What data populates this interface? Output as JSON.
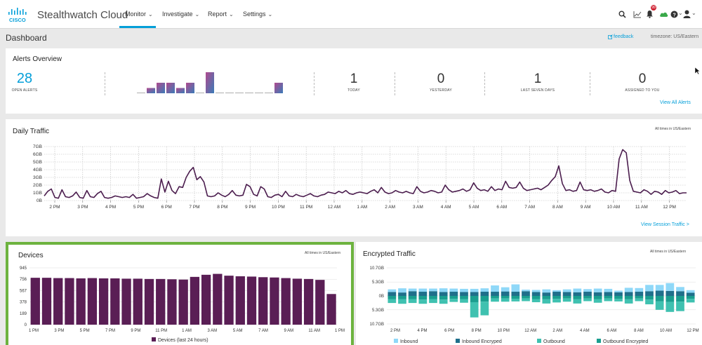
{
  "app": {
    "brand": "Stealthwatch Cloud",
    "logo_text": "CISCO",
    "nav": [
      {
        "label": "Monitor"
      },
      {
        "label": "Investigate"
      },
      {
        "label": "Report"
      },
      {
        "label": "Settings"
      }
    ],
    "notification_count": "99",
    "icons": [
      "search-icon",
      "chart-icon",
      "bell-icon",
      "cloud-icon",
      "help-icon",
      "user-icon"
    ]
  },
  "page": {
    "title": "Dashboard",
    "feedback_label": "feedback",
    "timezone_label": "timezone: US/Eastern"
  },
  "alerts_overview": {
    "title": "Alerts Overview",
    "open_alerts": {
      "value": "28",
      "label": "OPEN ALERTS"
    },
    "sparkline_values": [
      0,
      1,
      2,
      2,
      1,
      2,
      0,
      4,
      0,
      0,
      0,
      0,
      0,
      0,
      2
    ],
    "kpis": [
      {
        "value": "1",
        "label": "TODAY"
      },
      {
        "value": "0",
        "label": "YESTERDAY"
      },
      {
        "value": "1",
        "label": "LAST SEVEN DAYS"
      },
      {
        "value": "0",
        "label": "ASSIGNED TO YOU"
      }
    ],
    "link": "View All Alerts"
  },
  "daily_traffic": {
    "title": "Daily Traffic",
    "note": "All times in US/Eastern",
    "link": "View Session Traffic >",
    "color": "#4b1d4e"
  },
  "devices": {
    "title": "Devices",
    "note": "All times in US/Eastern",
    "legend": "Devices (last 24 hours)",
    "color": "#5a1e55",
    "border_color": "#6db33f"
  },
  "encrypted_traffic": {
    "title": "Encrypted Traffic",
    "note": "All times in US/Eastern",
    "colors": {
      "inbound": "#8fd8f8",
      "inbound_encrypted": "#1f6f8b",
      "outbound": "#3fc1b0",
      "outbound_encrypted": "#1a9e8f"
    }
  },
  "chart_data": [
    {
      "type": "line",
      "name": "daily_traffic",
      "ylabels": [
        "0B",
        "1GB",
        "2GB",
        "3GB",
        "4GB",
        "5GB",
        "6GB",
        "7GB"
      ],
      "ylim": [
        0,
        7
      ],
      "xticks": [
        "2 PM",
        "3 PM",
        "4 PM",
        "5 PM",
        "6 PM",
        "7 PM",
        "8 PM",
        "9 PM",
        "10 PM",
        "11 PM",
        "12 AM",
        "1 AM",
        "2 AM",
        "3 AM",
        "4 AM",
        "5 AM",
        "6 AM",
        "7 AM",
        "8 AM",
        "9 AM",
        "10 AM",
        "11 AM",
        "12 PM"
      ],
      "values": [
        0.6,
        1.2,
        1.5,
        0.4,
        0.3,
        1.4,
        0.5,
        0.4,
        0.6,
        1.1,
        0.4,
        0.3,
        1.3,
        0.5,
        0.4,
        0.9,
        1.2,
        0.4,
        0.3,
        0.4,
        0.6,
        0.5,
        0.4,
        0.5,
        0.4,
        0.8,
        0.3,
        0.4,
        0.5,
        0.9,
        0.6,
        0.4,
        0.3,
        2.8,
        1.1,
        2.5,
        1.3,
        0.9,
        1.8,
        1.7,
        3.0,
        3.8,
        4.3,
        2.7,
        3.1,
        2.4,
        0.6,
        0.5,
        0.6,
        1.0,
        0.7,
        0.5,
        0.8,
        1.3,
        0.7,
        0.6,
        0.7,
        2.1,
        1.8,
        0.8,
        0.6,
        1.8,
        1.5,
        0.5,
        0.4,
        0.7,
        0.8,
        0.5,
        1.2,
        0.6,
        0.5,
        0.8,
        0.6,
        0.5,
        0.7,
        0.9,
        0.6,
        0.5,
        0.7,
        0.8,
        1.1,
        1.0,
        0.9,
        1.2,
        1.0,
        1.3,
        0.9,
        0.8,
        1.0,
        1.1,
        1.0,
        0.9,
        1.2,
        1.4,
        1.0,
        1.7,
        1.1,
        0.9,
        1.0,
        1.3,
        1.1,
        1.0,
        1.2,
        1.0,
        0.9,
        1.8,
        1.2,
        1.0,
        1.1,
        1.3,
        1.2,
        1.0,
        1.1,
        2.0,
        1.4,
        1.1,
        1.2,
        1.3,
        1.5,
        1.2,
        1.4,
        2.3,
        1.6,
        1.3,
        1.4,
        1.2,
        1.8,
        1.3,
        1.5,
        1.4,
        2.5,
        1.7,
        1.6,
        1.7,
        2.4,
        1.6,
        1.3,
        1.4,
        1.5,
        1.6,
        1.4,
        1.7,
        2.0,
        2.6,
        3.1,
        4.5,
        2.2,
        1.3,
        1.4,
        1.2,
        1.3,
        2.4,
        1.4,
        1.3,
        1.4,
        1.2,
        1.3,
        1.5,
        1.1,
        1.0,
        1.3,
        1.2,
        5.4,
        6.6,
        6.2,
        2.6,
        1.2,
        1.1,
        1.0,
        1.4,
        1.2,
        0.8,
        1.2,
        1.1,
        0.8,
        1.3,
        1.0,
        1.1,
        1.3,
        0.9,
        1.0,
        1.0
      ]
    },
    {
      "type": "bar",
      "name": "devices",
      "series_name": "Devices (last 24 hours)",
      "ylabels": [
        "0",
        "189",
        "378",
        "567",
        "756",
        "945"
      ],
      "ylim": [
        0,
        945
      ],
      "xticks": [
        "1 PM",
        "3 PM",
        "5 PM",
        "7 PM",
        "9 PM",
        "11 PM",
        "1 AM",
        "3 AM",
        "5 AM",
        "7 AM",
        "9 AM",
        "11 AM",
        "1 PM"
      ],
      "values": [
        780,
        780,
        775,
        775,
        770,
        775,
        770,
        770,
        765,
        765,
        760,
        760,
        755,
        750,
        795,
        830,
        845,
        815,
        805,
        800,
        790,
        785,
        775,
        765,
        760,
        745,
        510
      ]
    },
    {
      "type": "bar",
      "name": "encrypted_traffic",
      "ylabels": [
        "10.7GB",
        "5.3GB",
        "0B",
        "5.3GB",
        "10.7GB"
      ],
      "xticks": [
        "2 PM",
        "4 PM",
        "6 PM",
        "8 PM",
        "10 PM",
        "12 AM",
        "2 AM",
        "4 AM",
        "6 AM",
        "8 AM",
        "10 AM",
        "12 PM"
      ],
      "legend": [
        "Inbound",
        "Inbound Encryped",
        "Outbound",
        "Outbound Encrypted"
      ],
      "series": [
        {
          "name": "Inbound",
          "values": [
            1.0,
            1.6,
            1.0,
            1.2,
            1.0,
            1.4,
            1.2,
            1.2,
            1.2,
            1.3,
            2.4,
            1.6,
            2.8,
            0.6,
            0.8,
            1.2,
            0.6,
            1.0,
            1.4,
            1.0,
            1.4,
            1.2,
            0.6,
            1.6,
            1.4,
            2.4,
            2.2,
            3.0,
            1.6,
            1.0
          ]
        },
        {
          "name": "Inbound Encryped",
          "values": [
            1.5,
            1.3,
            1.8,
            1.6,
            1.8,
            1.5,
            1.6,
            1.5,
            1.5,
            1.6,
            1.6,
            1.7,
            1.6,
            1.8,
            1.5,
            1.3,
            1.6,
            1.5,
            1.4,
            1.6,
            1.4,
            1.5,
            1.4,
            1.5,
            1.6,
            1.8,
            2.0,
            1.9,
            1.8,
            1.2
          ]
        },
        {
          "name": "Outbound",
          "values": [
            1.5,
            1.7,
            1.5,
            1.6,
            1.5,
            1.6,
            1.2,
            1.4,
            5.8,
            5.2,
            1.2,
            1.2,
            1.0,
            1.0,
            1.2,
            1.6,
            1.4,
            1.2,
            1.6,
            1.0,
            1.4,
            1.0,
            1.0,
            1.6,
            1.0,
            1.8,
            3.2,
            3.8,
            3.6,
            1.4
          ]
        },
        {
          "name": "Outbound Encrypted",
          "values": [
            1.2,
            1.3,
            1.2,
            1.4,
            1.2,
            1.4,
            1.1,
            1.2,
            2.4,
            2.2,
            1.0,
            1.0,
            1.1,
            1.0,
            1.2,
            1.3,
            1.1,
            1.0,
            1.3,
            1.0,
            1.2,
            1.0,
            1.1,
            1.3,
            1.0,
            1.4,
            2.1,
            2.3,
            2.2,
            1.1
          ]
        }
      ]
    }
  ]
}
